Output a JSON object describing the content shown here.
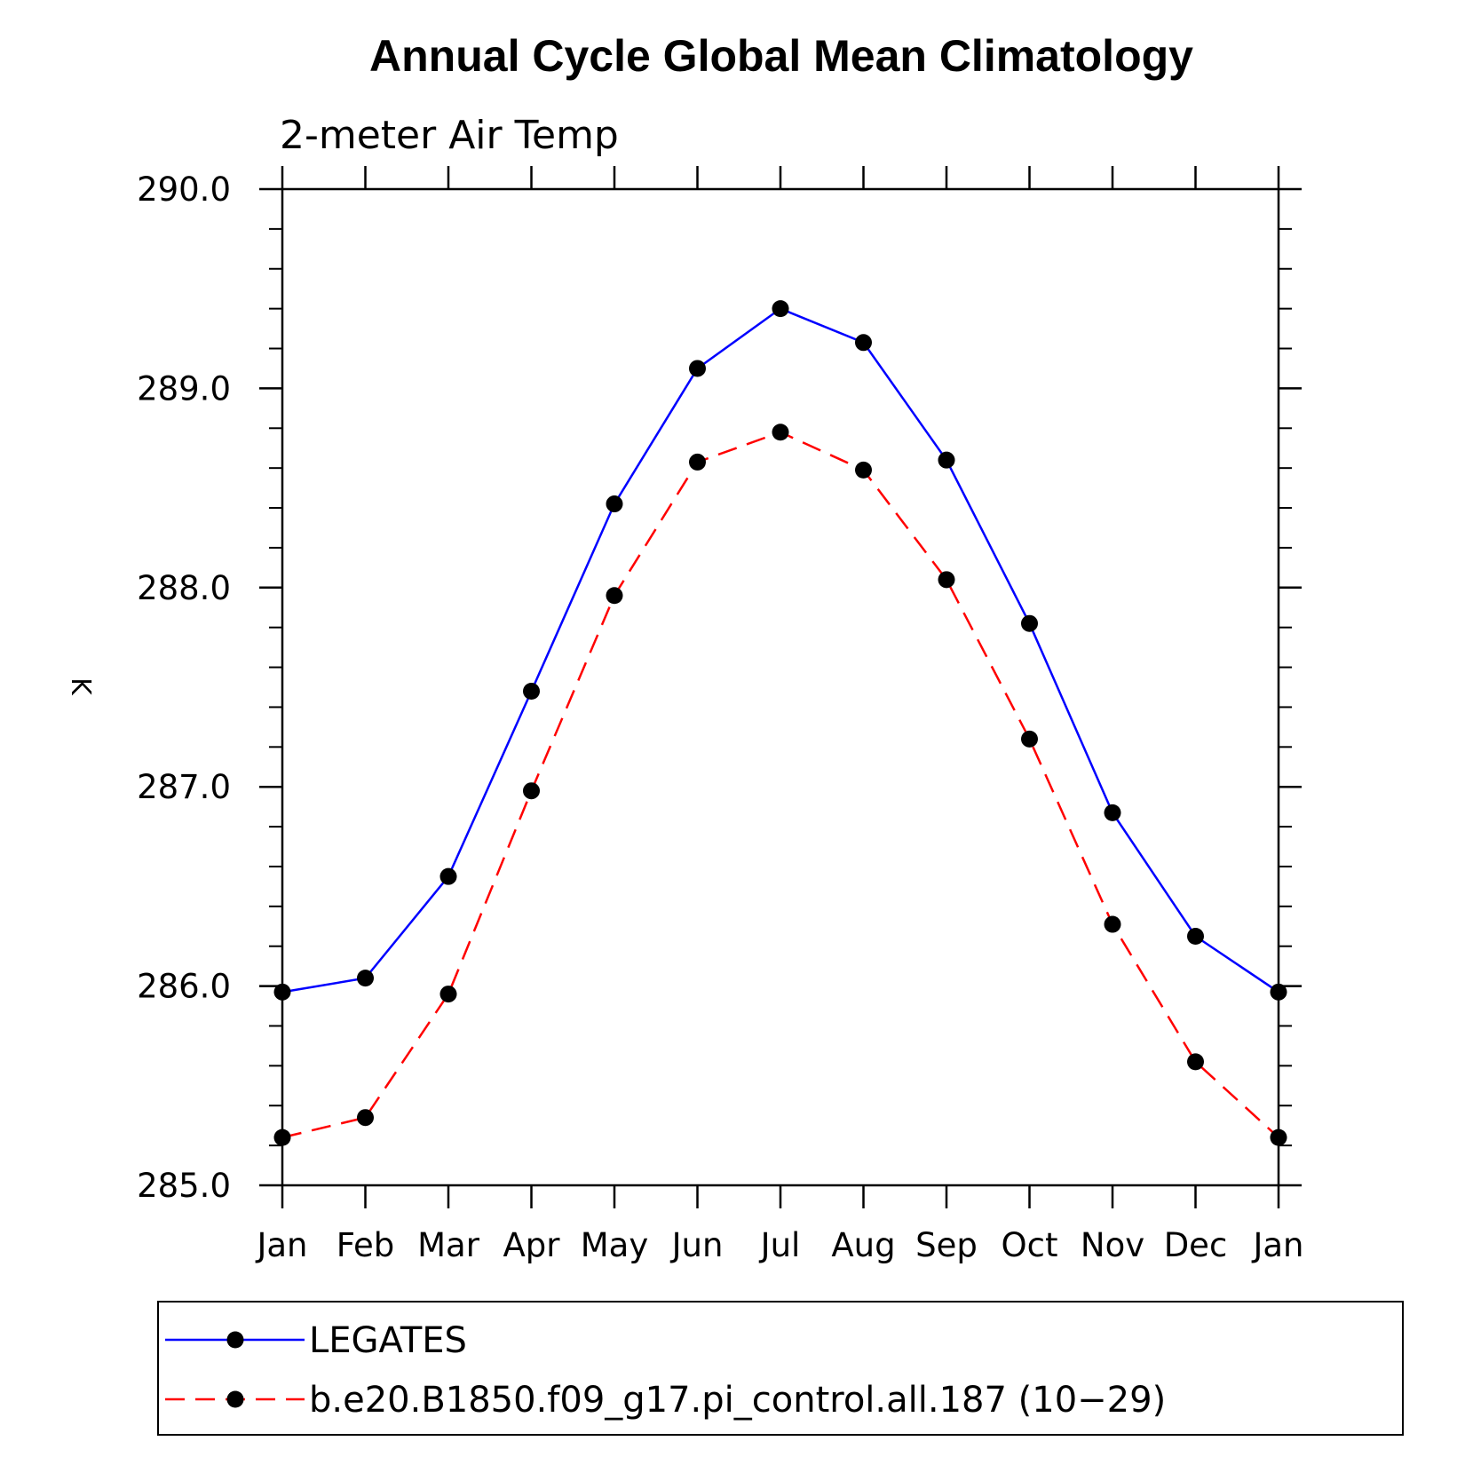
{
  "chart_data": {
    "type": "line",
    "title": "Annual Cycle Global Mean Climatology",
    "subtitle": "2-meter Air Temp",
    "xlabel": "",
    "ylabel": "K",
    "categories": [
      "Jan",
      "Feb",
      "Mar",
      "Apr",
      "May",
      "Jun",
      "Jul",
      "Aug",
      "Sep",
      "Oct",
      "Nov",
      "Dec",
      "Jan"
    ],
    "ylim": [
      285.0,
      290.0
    ],
    "yticks": [
      285.0,
      286.0,
      287.0,
      288.0,
      289.0,
      290.0
    ],
    "ytick_labels": [
      "285.0",
      "286.0",
      "287.0",
      "288.0",
      "289.0",
      "290.0"
    ],
    "y_minor_step": 0.2,
    "grid": false,
    "legend_position": "bottom",
    "series": [
      {
        "name": "LEGATES",
        "color": "#0000ff",
        "line_style": "solid",
        "marker": "filled-circle",
        "values": [
          285.97,
          286.04,
          286.55,
          287.48,
          288.42,
          289.1,
          289.4,
          289.23,
          288.64,
          287.82,
          286.87,
          286.25,
          285.97
        ]
      },
      {
        "name": "b.e20.B1850.f09_g17.pi_control.all.187 (10−29)",
        "color": "#ff0000",
        "line_style": "dashed",
        "marker": "filled-circle",
        "values": [
          285.24,
          285.34,
          285.96,
          286.98,
          287.96,
          288.63,
          288.78,
          288.59,
          288.04,
          287.24,
          286.31,
          285.62,
          285.24
        ]
      }
    ]
  }
}
